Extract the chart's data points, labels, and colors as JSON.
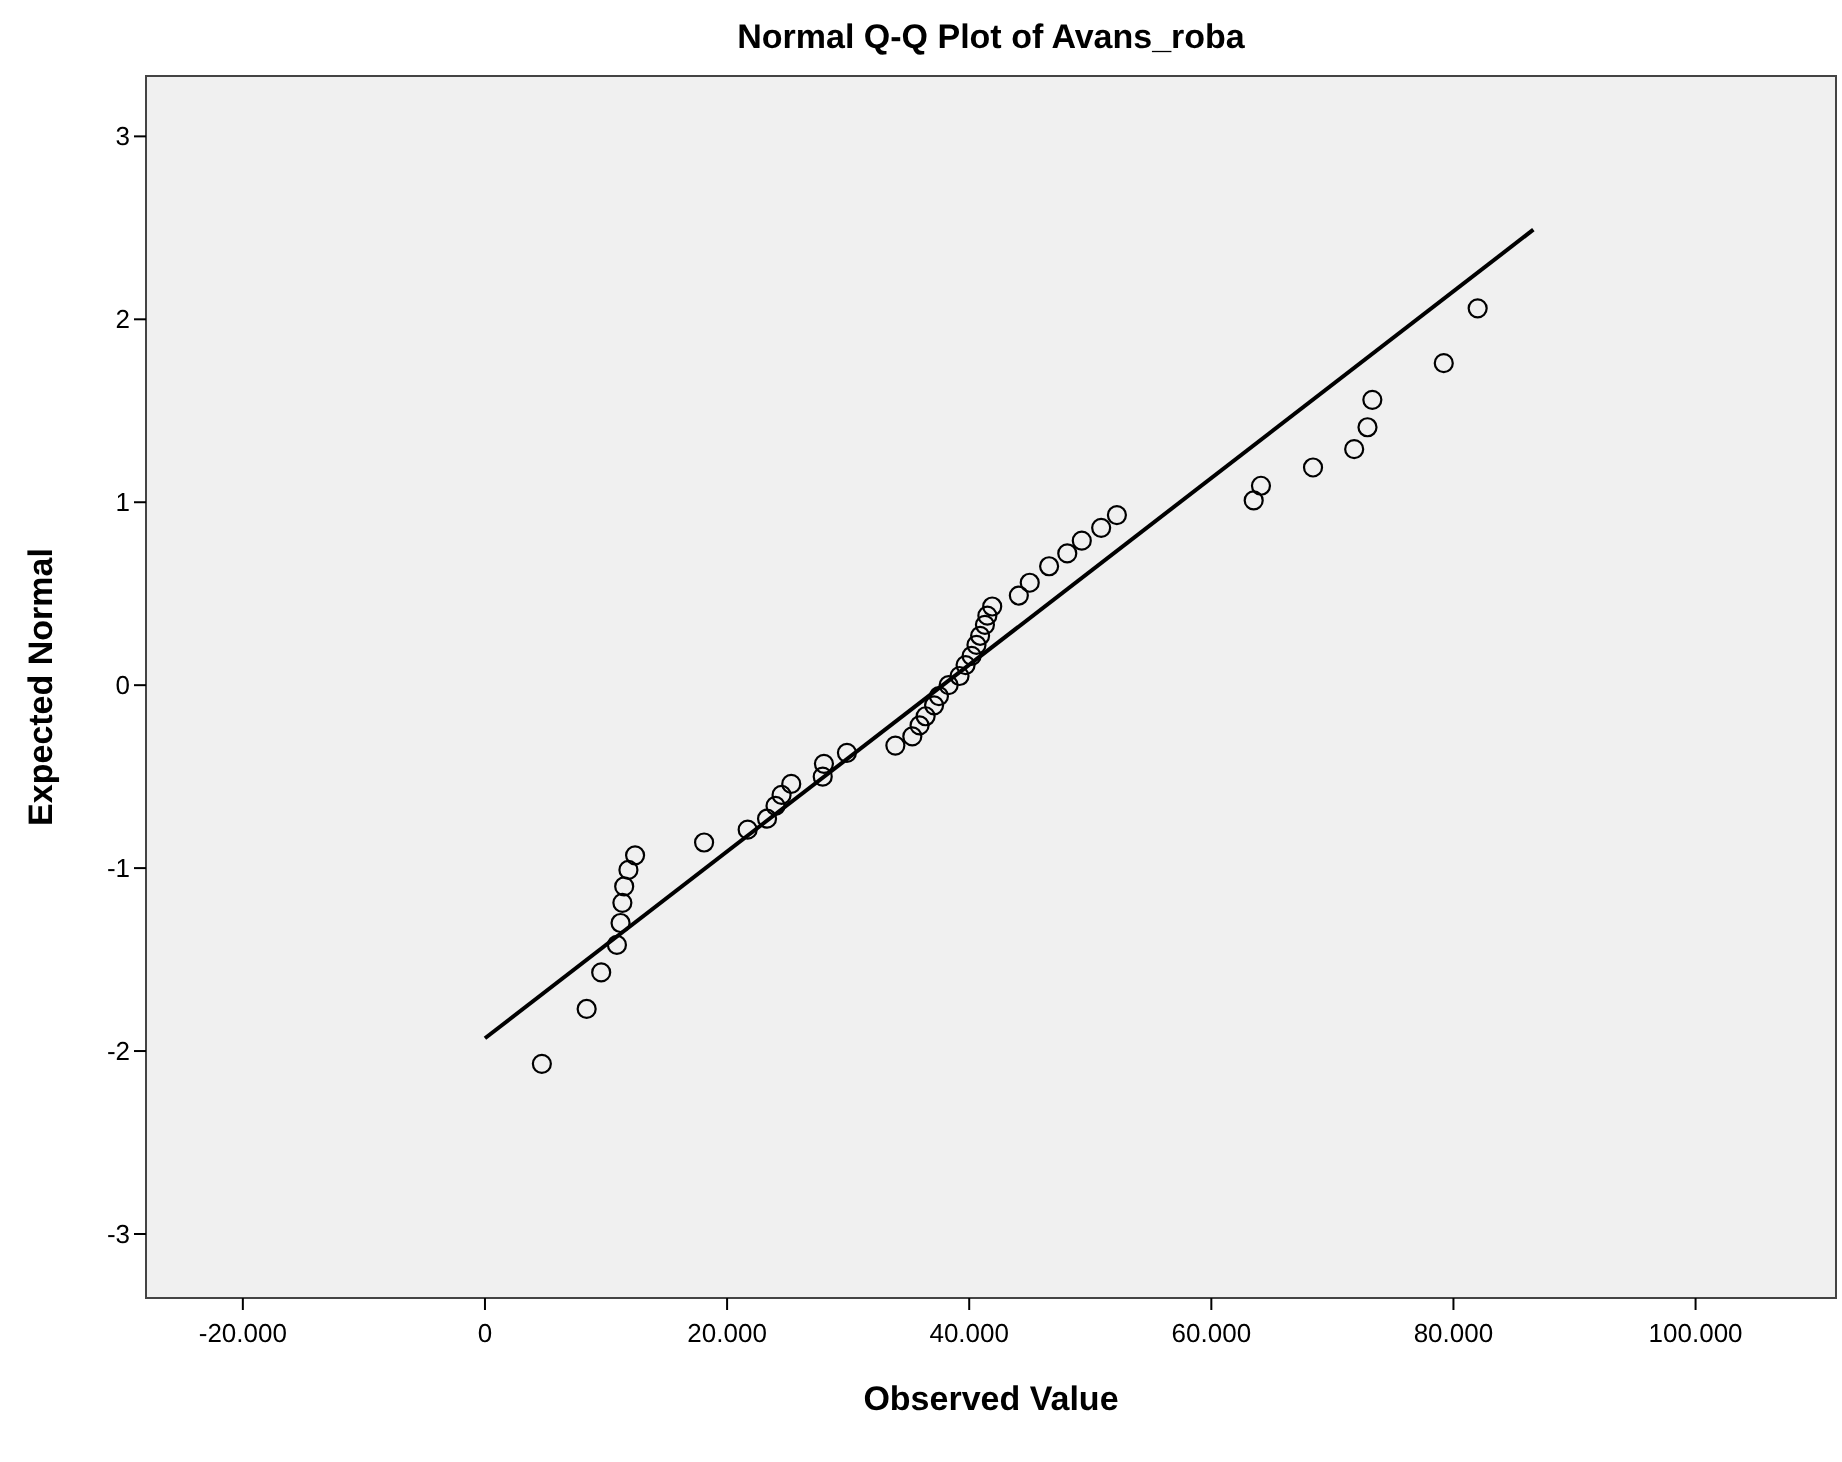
{
  "chart_data": {
    "type": "scatter",
    "title": "Normal Q-Q Plot of Avans_roba",
    "xlabel": "Observed Value",
    "ylabel": "Expected Normal",
    "xlim": [
      -28000,
      111600
    ],
    "ylim": [
      -3.35,
      3.33
    ],
    "xticks": [
      {
        "value": -20000,
        "label": "-20.000"
      },
      0,
      {
        "value": 20000,
        "label": "20.000"
      },
      {
        "value": 40000,
        "label": "40.000"
      },
      {
        "value": 60000,
        "label": "60.000"
      },
      {
        "value": 80000,
        "label": "80.000"
      },
      {
        "value": 100000,
        "label": "100.000"
      }
    ],
    "yticks": [
      -3,
      -2,
      -1,
      0,
      1,
      2,
      3
    ],
    "grid": false,
    "marker": "circle",
    "series": [
      {
        "color": "#000000",
        "x": [
          4700,
          8400,
          9600,
          10900,
          11200,
          11350,
          11500,
          11850,
          12400,
          18100,
          21700,
          23300,
          24000,
          24500,
          25300,
          27900,
          28000,
          29900,
          33900,
          35300,
          35900,
          36400,
          37100,
          37500,
          38300,
          39200,
          39700,
          40200,
          40600,
          40900,
          41300,
          41500,
          41900,
          44100,
          45000,
          46600,
          48100,
          49300,
          50900,
          52200,
          63500,
          64100,
          68400,
          71800,
          72900,
          73300,
          79200,
          82000
        ],
        "values": [
          -2.07,
          -1.77,
          -1.57,
          -1.42,
          -1.3,
          -1.19,
          -1.1,
          -1.01,
          -0.93,
          -0.86,
          -0.79,
          -0.73,
          -0.66,
          -0.6,
          -0.54,
          -0.5,
          -0.43,
          -0.37,
          -0.33,
          -0.28,
          -0.22,
          -0.17,
          -0.11,
          -0.06,
          0,
          0.05,
          0.11,
          0.16,
          0.22,
          0.27,
          0.33,
          0.38,
          0.43,
          0.49,
          0.56,
          0.65,
          0.72,
          0.79,
          0.86,
          0.93,
          1.01,
          1.09,
          1.19,
          1.29,
          1.41,
          1.56,
          1.76,
          2.06
        ]
      },
      {
        "type": "line",
        "color": "#000000",
        "marker": "none",
        "line_style": "solid",
        "x": [
          0,
          86600
        ],
        "values": [
          -1.93,
          2.49
        ]
      }
    ]
  }
}
